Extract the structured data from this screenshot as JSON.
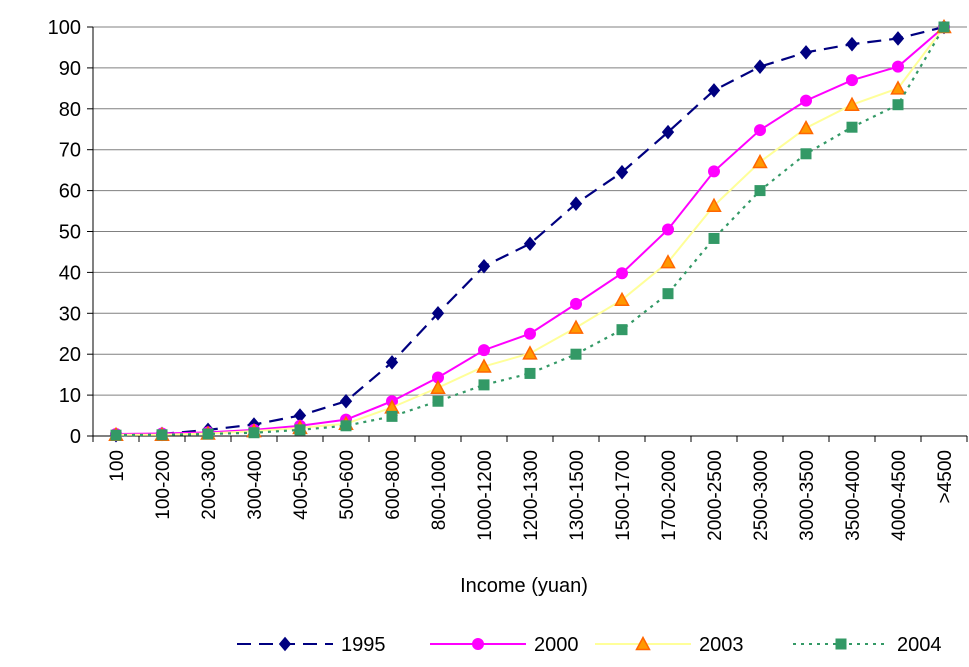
{
  "chart_data": {
    "type": "line",
    "title": "",
    "xlabel": "Income (yuan)",
    "ylabel": "",
    "ylim": [
      0,
      100
    ],
    "yticks": [
      0,
      10,
      20,
      30,
      40,
      50,
      60,
      70,
      80,
      90,
      100
    ],
    "grid": "horizontal",
    "legend_position": "bottom",
    "categories": [
      "100",
      "100-200",
      "200-300",
      "300-400",
      "400-500",
      "500-600",
      "600-800",
      "800-1000",
      "1000-1200",
      "1200-1300",
      "1300-1500",
      "1500-1700",
      "1700-2000",
      "2000-2500",
      "2500-3000",
      "3000-3500",
      "3500-4000",
      "4000-4500",
      ">4500"
    ],
    "series": [
      {
        "name": "1995",
        "color": "#000080",
        "dash": "long-dash",
        "marker": "diamond",
        "values": [
          0.2,
          0.5,
          1.5,
          2.8,
          5.0,
          8.5,
          18.0,
          30.0,
          41.5,
          47.0,
          56.8,
          64.5,
          74.3,
          84.5,
          90.3,
          93.8,
          95.8,
          97.2,
          100
        ]
      },
      {
        "name": "2000",
        "color": "#ff00ff",
        "dash": "solid",
        "marker": "circle",
        "values": [
          0.5,
          0.6,
          0.9,
          1.5,
          2.5,
          4.0,
          8.5,
          14.3,
          21.0,
          25.0,
          32.3,
          39.8,
          50.5,
          64.7,
          74.8,
          82.0,
          87.0,
          90.3,
          100
        ]
      },
      {
        "name": "2003",
        "color": "#ffff99",
        "marker_color": "#ff9900",
        "marker_stroke": "#ff6600",
        "dash": "solid",
        "marker": "triangle",
        "values": [
          0.3,
          0.3,
          0.6,
          1.2,
          2.0,
          3.0,
          7.0,
          11.8,
          17.0,
          20.2,
          26.5,
          33.3,
          42.5,
          56.3,
          67.0,
          75.3,
          81.0,
          85.0,
          100
        ]
      },
      {
        "name": "2004",
        "color": "#339966",
        "dash": "dotted",
        "marker": "square",
        "values": [
          0.2,
          0.3,
          0.5,
          0.8,
          1.5,
          2.5,
          4.8,
          8.5,
          12.5,
          15.3,
          20.0,
          26.0,
          34.8,
          48.3,
          60.0,
          69.0,
          75.5,
          81.0,
          100
        ]
      }
    ]
  }
}
